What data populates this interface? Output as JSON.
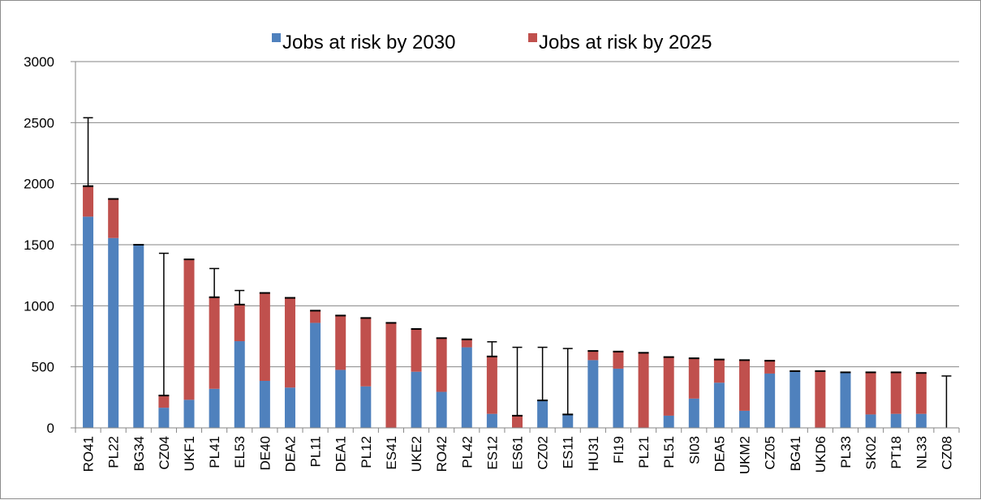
{
  "chart_data": {
    "type": "bar",
    "stacked": true,
    "title": "",
    "xlabel": "",
    "ylabel": "",
    "ylim": [
      0,
      3000
    ],
    "yticks": [
      0,
      500,
      1000,
      1500,
      2000,
      2500,
      3000
    ],
    "grid": true,
    "legend_position": "top",
    "categories": [
      "RO41",
      "PL22",
      "BG34",
      "CZ04",
      "UKF1",
      "PL41",
      "EL53",
      "DE40",
      "DEA2",
      "PL11",
      "DEA1",
      "PL12",
      "ES41",
      "UKE2",
      "RO42",
      "PL42",
      "ES12",
      "ES61",
      "CZ02",
      "ES11",
      "HU31",
      "FI19",
      "PL21",
      "PL51",
      "SI03",
      "DEA5",
      "UKM2",
      "CZ05",
      "BG41",
      "UKD6",
      "PL33",
      "SK02",
      "PT18",
      "NL33",
      "CZ08"
    ],
    "series": [
      {
        "name": "Jobs at risk by 2030",
        "color": "#4f81bd",
        "values": [
          1730,
          1555,
          1500,
          165,
          230,
          320,
          710,
          385,
          330,
          860,
          475,
          340,
          0,
          460,
          295,
          660,
          115,
          0,
          225,
          110,
          555,
          485,
          0,
          100,
          240,
          370,
          140,
          445,
          465,
          0,
          455,
          110,
          115,
          115,
          0
        ]
      },
      {
        "name": "Jobs at risk by 2025",
        "color": "#c0504d",
        "values": [
          250,
          320,
          0,
          100,
          1150,
          750,
          300,
          720,
          735,
          100,
          445,
          560,
          860,
          350,
          440,
          65,
          470,
          100,
          0,
          0,
          75,
          140,
          615,
          480,
          330,
          190,
          415,
          105,
          0,
          465,
          0,
          345,
          340,
          335,
          0
        ]
      }
    ],
    "error_bars": [
      {
        "category": "RO41",
        "upper": 2540
      },
      {
        "category": "CZ04",
        "upper": 1430
      },
      {
        "category": "PL41",
        "upper": 1305
      },
      {
        "category": "EL53",
        "upper": 1125
      },
      {
        "category": "ES12",
        "upper": 705
      },
      {
        "category": "ES61",
        "upper": 660
      },
      {
        "category": "CZ02",
        "upper": 660
      },
      {
        "category": "ES11",
        "upper": 650
      },
      {
        "category": "CZ08",
        "upper": 425
      }
    ],
    "axis_color": "#868686",
    "grid_color": "#868686",
    "error_bar_color": "#000000"
  }
}
